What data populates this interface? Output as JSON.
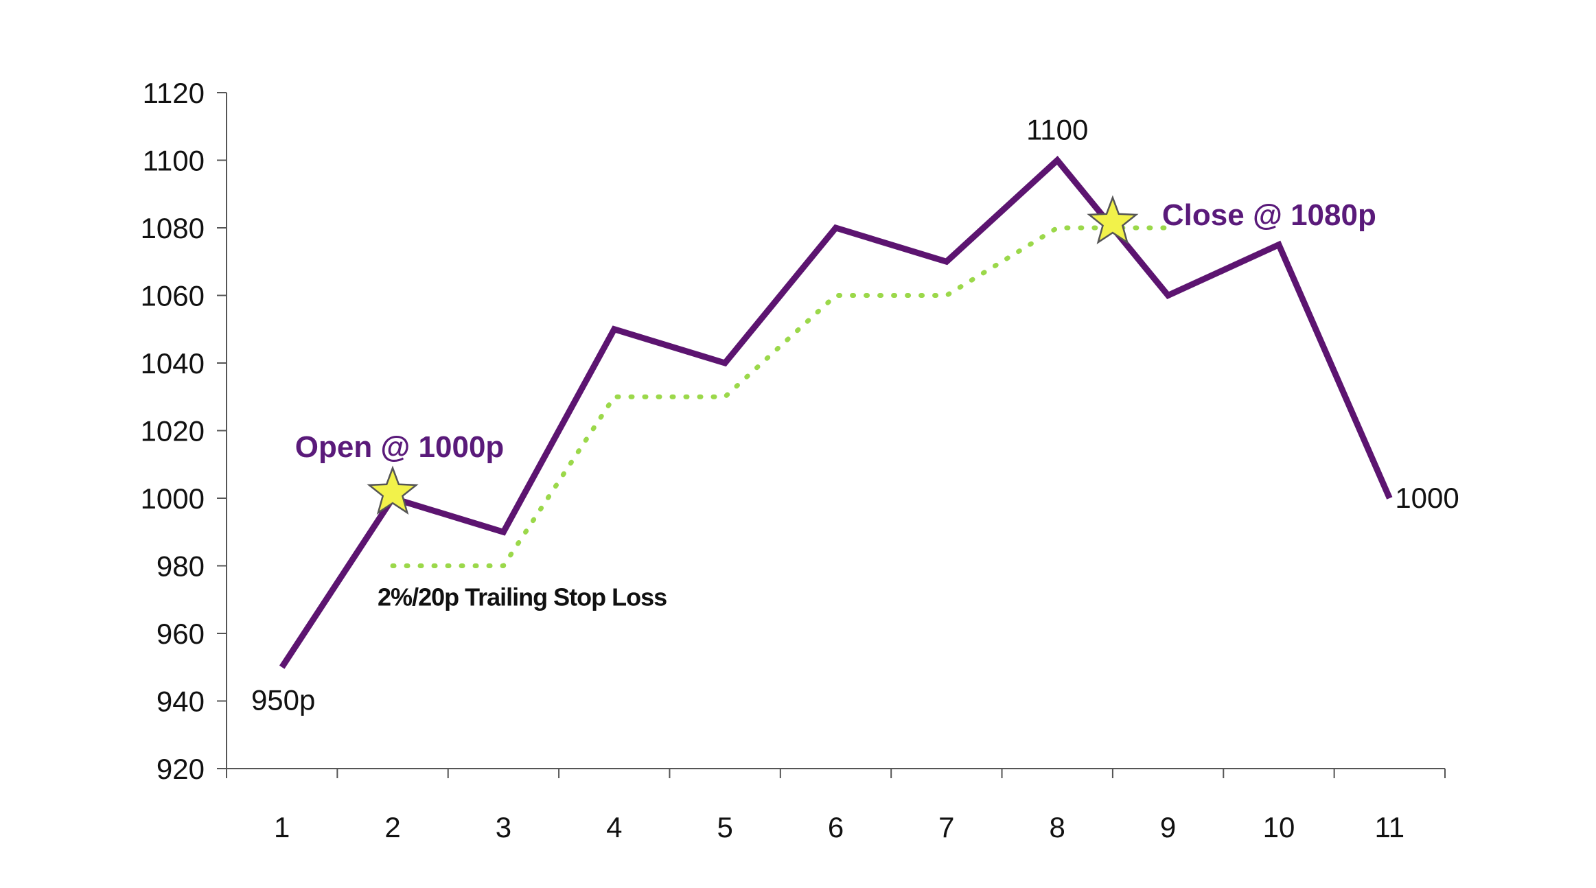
{
  "chart_data": {
    "type": "line",
    "x": [
      1,
      2,
      3,
      4,
      5,
      6,
      7,
      8,
      9,
      10,
      11
    ],
    "categories": [
      "1",
      "2",
      "3",
      "4",
      "5",
      "6",
      "7",
      "8",
      "9",
      "10",
      "11"
    ],
    "series": [
      {
        "values": [
          950,
          1000,
          990,
          1050,
          1040,
          1080,
          1070,
          1100,
          1060,
          1075,
          1000
        ],
        "color": "#5c1470",
        "style": "solid"
      },
      {
        "name": "2%/20p Trailing Stop Loss",
        "x": [
          2,
          3,
          4,
          5,
          6,
          7,
          8,
          9
        ],
        "values": [
          980,
          980,
          1030,
          1030,
          1060,
          1060,
          1080,
          1080
        ],
        "color": "#9bd84a",
        "style": "dotted"
      }
    ],
    "ylim": [
      920,
      1120
    ],
    "yticks": [
      920,
      940,
      960,
      980,
      1000,
      1020,
      1040,
      1060,
      1080,
      1100,
      1120
    ],
    "xlim": [
      0.5,
      11.5
    ],
    "grid": false,
    "title": "",
    "xlabel": "",
    "ylabel": "",
    "point_labels": [
      {
        "x": 1,
        "y": 950,
        "text": "950p"
      },
      {
        "x": 8,
        "y": 1100,
        "text": "1100"
      },
      {
        "x": 11,
        "y": 1000,
        "text": "1000"
      }
    ],
    "annotations": [
      {
        "x": 2,
        "y": 1000,
        "text": "Open @ 1000p",
        "marker": "star"
      },
      {
        "x": 8.5,
        "y": 1080,
        "text": "Close @ 1080p",
        "marker": "star"
      }
    ],
    "marker_color": "#f2f24a"
  }
}
